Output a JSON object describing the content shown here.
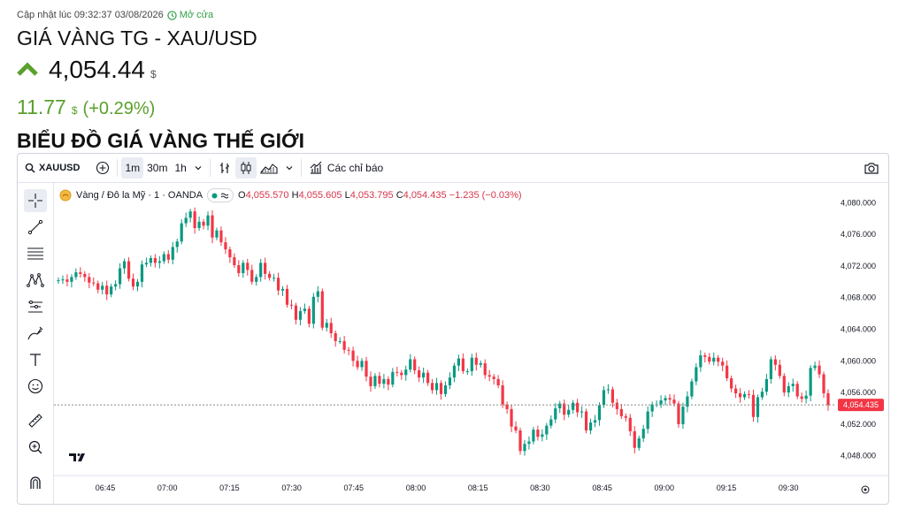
{
  "header": {
    "updated": "Cập nhật lúc 09:32:37 03/08/2026",
    "market_status": "Mở cửa",
    "title": "GIÁ VÀNG TG - XAU/USD",
    "price": "4,054.44",
    "price_unit": "$",
    "change": "11.77",
    "change_unit": "$",
    "change_pct": "(+0.29%)",
    "section_title": "BIỂU ĐỒ GIÁ VÀNG THẾ GIỚI"
  },
  "toolbar": {
    "symbol": "XAUUSD",
    "intervals": [
      "1m",
      "30m",
      "1h"
    ],
    "active_interval": "1m",
    "indicators": "Các chỉ báo"
  },
  "legend": {
    "symbol": "Vàng / Đô la Mỹ · 1 · OANDA",
    "o_label": "O",
    "o": "4,055.570",
    "h_label": "H",
    "h": "4,055.605",
    "l_label": "L",
    "l": "4,053.795",
    "c_label": "C",
    "c": "4,054.435",
    "chg": "−1.235 (−0.03%)"
  },
  "colors": {
    "up": "#089981",
    "down": "#f23645",
    "accent": "#5aa02c"
  },
  "chart_data": {
    "type": "candlestick",
    "symbol": "XAUUSD",
    "interval": "1m",
    "ylim": [
      4045.5,
      4082.5
    ],
    "y_ticks": [
      "4,080.000",
      "4,076.000",
      "4,072.000",
      "4,068.000",
      "4,064.000",
      "4,060.000",
      "4,056.000",
      "4,052.000",
      "4,048.000"
    ],
    "y_tick_values": [
      4080,
      4076,
      4072,
      4068,
      4064,
      4060,
      4056,
      4052,
      4048
    ],
    "x_ticks": [
      "06:45",
      "07:00",
      "07:15",
      "07:30",
      "07:45",
      "08:00",
      "08:15",
      "08:30",
      "08:45",
      "09:00",
      "09:15",
      "09:30"
    ],
    "last_price_label": "4,054.435",
    "last_price": 4054.435,
    "series": [
      {
        "name": "Vàng / Đô la Mỹ",
        "values": [
          4070.2,
          4070.3,
          4070.0,
          4070.6,
          4071.2,
          4071.0,
          4070.6,
          4069.9,
          4069.8,
          4069.0,
          4069.5,
          4068.4,
          4069.4,
          4069.7,
          4071.7,
          4072.6,
          4070.4,
          4069.4,
          4070.0,
          4072.2,
          4072.4,
          4073.0,
          4072.4,
          4072.6,
          4073.5,
          4072.8,
          4074.4,
          4075.1,
          4077.4,
          4078.1,
          4078.9,
          4076.8,
          4077.6,
          4077.1,
          4078.4,
          4075.6,
          4076.5,
          4075.0,
          4074.1,
          4073.1,
          4072.1,
          4071.1,
          4072.4,
          4071.5,
          4070.0,
          4070.6,
          4072.4,
          4071.0,
          4070.5,
          4070.5,
          4068.9,
          4069.1,
          4067.1,
          4067.0,
          4065.2,
          4066.3,
          4066.6,
          4064.7,
          4068.1,
          4068.8,
          4064.2,
          4064.8,
          4063.5,
          4062.5,
          4062.5,
          4061.4,
          4061.3,
          4060.0,
          4059.2,
          4060.0,
          4058.0,
          4056.8,
          4058.1,
          4057.1,
          4057.7,
          4057.0,
          4058.6,
          4058.5,
          4058.2,
          4058.9,
          4060.2,
          4058.8,
          4057.9,
          4058.5,
          4057.2,
          4056.3,
          4057.2,
          4055.8,
          4056.9,
          4057.9,
          4059.4,
          4060.3,
          4058.7,
          4058.7,
          4060.4,
          4059.5,
          4059.7,
          4058.2,
          4058.0,
          4057.7,
          4056.9,
          4054.5,
          4053.9,
          4051.7,
          4051.2,
          4048.6,
          4049.5,
          4049.8,
          4051.3,
          4050.4,
          4050.7,
          4051.8,
          4052.6,
          4054.0,
          4054.6,
          4053.2,
          4053.8,
          4054.7,
          4053.5,
          4053.6,
          4051.2,
          4052.2,
          4052.5,
          4054.4,
          4056.3,
          4056.4,
          4054.7,
          4053.9,
          4053.0,
          4052.8,
          4051.1,
          4049.0,
          4050.2,
          4051.4,
          4053.6,
          4054.5,
          4054.5,
          4055.0,
          4055.3,
          4055.1,
          4054.6,
          4052.0,
          4054.2,
          4055.5,
          4057.4,
          4059.2,
          4060.7,
          4060.5,
          4059.9,
          4060.4,
          4059.9,
          4059.4,
          4057.8,
          4056.5,
          4055.9,
          4055.4,
          4055.8,
          4055.7,
          4052.9,
          4055.4,
          4056.1,
          4057.7,
          4060.2,
          4059.5,
          4058.1,
          4056.0,
          4056.8,
          4057.1,
          4055.5,
          4055.2,
          4055.6,
          4059.1,
          4059.4,
          4058.3,
          4055.9,
          4054.4
        ]
      }
    ]
  }
}
